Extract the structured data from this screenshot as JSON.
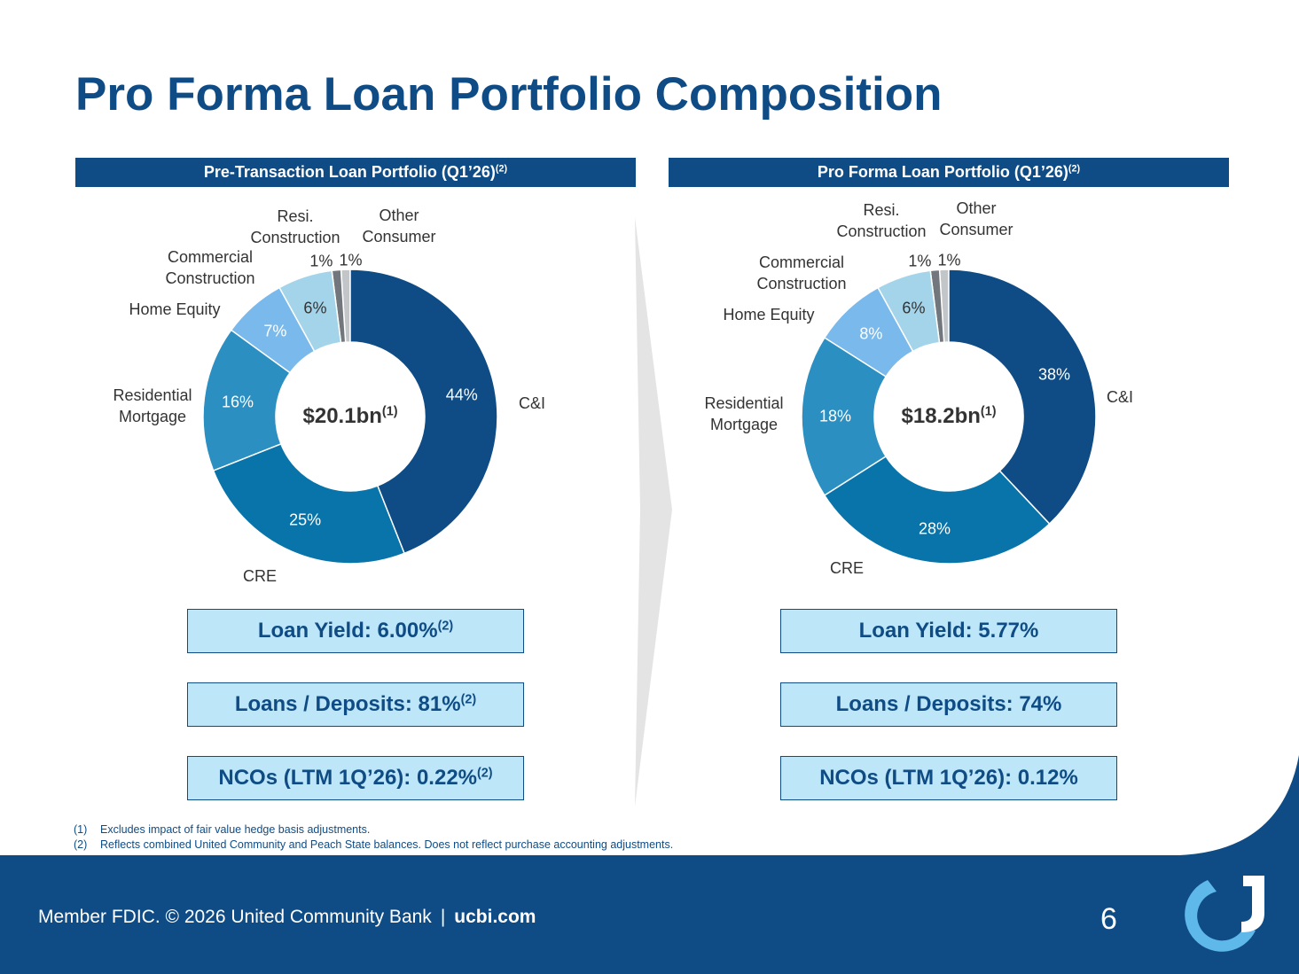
{
  "title": "Pro Forma Loan Portfolio Composition",
  "chart_data": [
    {
      "type": "pie",
      "subtitle": "Pre-Transaction Loan Portfolio (Q1’26)",
      "subtitle_note": "(2)",
      "center_label": "$20.1bn",
      "center_note": "(1)",
      "categories": [
        "C&I",
        "CRE",
        "Residential Mortgage",
        "Home Equity",
        "Commercial Construction",
        "Resi. Construction",
        "Other Consumer"
      ],
      "values": [
        44,
        25,
        16,
        7,
        6,
        1,
        1
      ],
      "value_labels": [
        "44%",
        "25%",
        "16%",
        "7%",
        "6%",
        "1%",
        "1%"
      ],
      "colors": [
        "#0f4c85",
        "#0874aa",
        "#2c8fc1",
        "#7ab9ec",
        "#a4d4ea",
        "#72777d",
        "#c3c6c9"
      ]
    },
    {
      "type": "pie",
      "subtitle": "Pro Forma Loan Portfolio (Q1’26)",
      "subtitle_note": "(2)",
      "center_label": "$18.2bn",
      "center_note": "(1)",
      "categories": [
        "C&I",
        "CRE",
        "Residential Mortgage",
        "Home Equity",
        "Commercial Construction",
        "Resi. Construction",
        "Other Consumer"
      ],
      "values": [
        38,
        28,
        18,
        8,
        6,
        1,
        1
      ],
      "value_labels": [
        "38%",
        "28%",
        "18%",
        "8%",
        "6%",
        "1%",
        "1%"
      ],
      "colors": [
        "#0f4c85",
        "#0874aa",
        "#2c8fc1",
        "#7ab9ec",
        "#a4d4ea",
        "#72777d",
        "#c3c6c9"
      ]
    }
  ],
  "metrics": [
    [
      {
        "label": "Loan Yield: 6.00%",
        "note": "(2)"
      },
      {
        "label": "Loans / Deposits: 81%",
        "note": "(2)"
      },
      {
        "label": "NCOs (LTM 1Q’26): 0.22%",
        "note": "(2)"
      }
    ],
    [
      {
        "label": "Loan Yield: 5.77%"
      },
      {
        "label": "Loans / Deposits: 74%"
      },
      {
        "label": "NCOs (LTM 1Q’26): 0.12%"
      }
    ]
  ],
  "footnotes": [
    [
      "(1)",
      "Excludes impact of fair value hedge basis adjustments."
    ],
    [
      "(2)",
      "Reflects combined United Community and Peach State balances. Does not reflect purchase accounting adjustments."
    ]
  ],
  "footer": {
    "text": "Member FDIC. © 2026 United Community Bank",
    "separator": "|",
    "link": "ucbi.com",
    "page": "6"
  }
}
